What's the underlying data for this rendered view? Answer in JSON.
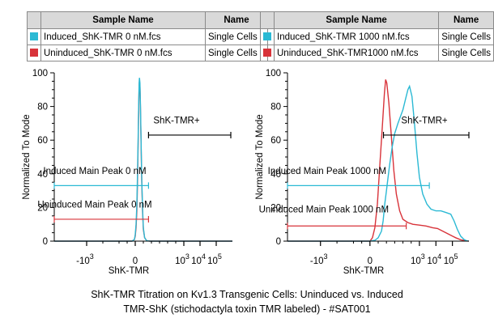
{
  "colors": {
    "induced": "#2bb9d4",
    "uninduced": "#d8333a",
    "axis": "#000000",
    "gate": "#000000"
  },
  "legends": [
    {
      "header_sample": "Sample Name",
      "header_name": "Name",
      "rows": [
        {
          "sample": "Induced_ShK-TMR 0 nM.fcs",
          "name": "Single Cells",
          "color_key": "induced"
        },
        {
          "sample": "Uninduced_ShK-TMR 0 nM.fcs",
          "name": "Single Cells",
          "color_key": "uninduced"
        }
      ]
    },
    {
      "header_sample": "Sample Name",
      "header_name": "Name",
      "rows": [
        {
          "sample": "Induced_ShK-TMR 1000 nM.fcs",
          "name": "Single Cells",
          "color_key": "induced"
        },
        {
          "sample": "Uninduced_ShK-TMR1000 nM.fcs",
          "name": "Single Cells",
          "color_key": "uninduced"
        }
      ]
    }
  ],
  "caption": {
    "line1": "ShK-TMR Titration on Kv1.3 Transgenic Cells:  Uninduced vs. Induced",
    "line2": "TMR-ShK (stichodactyla toxin TMR labeled) - #SAT001"
  },
  "chart_data": [
    {
      "type": "histogram",
      "xlabel": "ShK-TMR",
      "ylabel": "Normalized To Mode",
      "xlim": [
        -5,
        6
      ],
      "ylim": [
        0,
        100
      ],
      "y_ticks": [
        0,
        20,
        40,
        60,
        80,
        100
      ],
      "y_tick_labels": [
        "0",
        "20",
        "40",
        "60",
        "80",
        "100"
      ],
      "x_ticks": [
        {
          "x": -3,
          "label": "-10"
        },
        {
          "x": 0,
          "label": "0"
        },
        {
          "x": 3,
          "label": "10"
        },
        {
          "x": 4,
          "label": "10"
        },
        {
          "x": 5,
          "label": "10"
        }
      ],
      "x_tick_exp": [
        "3",
        "",
        "3",
        "4",
        "5"
      ],
      "gates": [
        {
          "label": "ShK-TMR+",
          "x1": 0.82,
          "x2": 5.9,
          "y": 63,
          "label_x": 2.55,
          "label_y": 70
        },
        {
          "label": "Induced Main Peak 0 nM",
          "x1": -5,
          "x2": 0.82,
          "y": 33,
          "label_x": -2.5,
          "label_y": 40,
          "color_key": "induced"
        },
        {
          "label": "Uninduced Main Peak 0 nM",
          "x1": -5,
          "x2": 0.82,
          "y": 13,
          "label_x": -2.5,
          "label_y": 20,
          "color_key": "uninduced"
        }
      ],
      "series": [
        {
          "name": "Induced_ShK-TMR 0 nM",
          "color_key": "induced",
          "points": [
            [
              -5,
              0
            ],
            [
              -0.2,
              0
            ],
            [
              -0.05,
              1
            ],
            [
              0.0,
              4
            ],
            [
              0.05,
              10
            ],
            [
              0.1,
              22
            ],
            [
              0.14,
              40
            ],
            [
              0.18,
              62
            ],
            [
              0.21,
              80
            ],
            [
              0.24,
              94
            ],
            [
              0.26,
              97
            ],
            [
              0.29,
              94
            ],
            [
              0.32,
              82
            ],
            [
              0.36,
              60
            ],
            [
              0.4,
              38
            ],
            [
              0.45,
              20
            ],
            [
              0.5,
              8
            ],
            [
              0.58,
              2
            ],
            [
              0.7,
              0.3
            ],
            [
              0.9,
              0
            ],
            [
              6,
              0
            ]
          ]
        },
        {
          "name": "Uninduced_ShK-TMR 0 nM",
          "color_key": "uninduced",
          "points": [
            [
              -5,
              0
            ],
            [
              -0.2,
              0
            ],
            [
              -0.05,
              1
            ],
            [
              0.0,
              3
            ],
            [
              0.05,
              8
            ],
            [
              0.1,
              18
            ],
            [
              0.14,
              35
            ],
            [
              0.18,
              58
            ],
            [
              0.21,
              78
            ],
            [
              0.24,
              92
            ],
            [
              0.26,
              95
            ],
            [
              0.29,
              92
            ],
            [
              0.32,
              80
            ],
            [
              0.36,
              58
            ],
            [
              0.4,
              36
            ],
            [
              0.45,
              18
            ],
            [
              0.5,
              7
            ],
            [
              0.58,
              2
            ],
            [
              0.7,
              0.3
            ],
            [
              0.9,
              0
            ],
            [
              6,
              0
            ]
          ]
        }
      ]
    },
    {
      "type": "histogram",
      "xlabel": "ShK-TMR",
      "ylabel": "Normalized To Mode",
      "xlim": [
        -5,
        6
      ],
      "ylim": [
        0,
        100
      ],
      "y_ticks": [
        0,
        20,
        40,
        60,
        80,
        100
      ],
      "y_tick_labels": [
        "0",
        "20",
        "40",
        "60",
        "80",
        "100"
      ],
      "x_ticks": [
        {
          "x": -3,
          "label": "-10"
        },
        {
          "x": 0,
          "label": "0"
        },
        {
          "x": 3,
          "label": "10"
        },
        {
          "x": 4,
          "label": "10"
        },
        {
          "x": 5,
          "label": "10"
        }
      ],
      "x_tick_exp": [
        "3",
        "",
        "3",
        "4",
        "5"
      ],
      "gates": [
        {
          "label": "ShK-TMR+",
          "x1": 0.82,
          "x2": 6,
          "y": 63,
          "label_x": 3.3,
          "label_y": 70
        },
        {
          "label": "Induced Main Peak 1000 nM",
          "x1": -5,
          "x2": 3.6,
          "y": 33,
          "label_x": -2.6,
          "label_y": 40,
          "color_key": "induced"
        },
        {
          "label": "Uninduced Main Peak 1000 nM",
          "x1": -5,
          "x2": 2.2,
          "y": 9,
          "label_x": -2.8,
          "label_y": 17,
          "color_key": "uninduced"
        }
      ],
      "series": [
        {
          "name": "Induced_ShK-TMR 1000 nM",
          "color_key": "induced",
          "points": [
            [
              -5,
              0
            ],
            [
              0.0,
              0
            ],
            [
              0.3,
              0.5
            ],
            [
              0.5,
              2
            ],
            [
              0.7,
              6
            ],
            [
              0.8,
              12
            ],
            [
              0.9,
              22
            ],
            [
              1.0,
              30
            ],
            [
              1.1,
              38
            ],
            [
              1.2,
              46
            ],
            [
              1.35,
              56
            ],
            [
              1.5,
              64
            ],
            [
              1.7,
              70
            ],
            [
              2.0,
              78
            ],
            [
              2.2,
              86
            ],
            [
              2.3,
              90
            ],
            [
              2.4,
              92
            ],
            [
              2.55,
              86
            ],
            [
              2.7,
              70
            ],
            [
              2.85,
              52
            ],
            [
              3.0,
              38
            ],
            [
              3.2,
              28
            ],
            [
              3.45,
              22
            ],
            [
              3.7,
              19
            ],
            [
              4.0,
              18
            ],
            [
              4.3,
              18
            ],
            [
              4.6,
              17
            ],
            [
              4.9,
              16
            ],
            [
              5.1,
              12
            ],
            [
              5.3,
              7
            ],
            [
              5.5,
              3
            ],
            [
              5.7,
              1
            ],
            [
              5.85,
              0.3
            ],
            [
              6,
              0
            ]
          ]
        },
        {
          "name": "Uninduced_ShK-TMR1000 nM",
          "color_key": "uninduced",
          "points": [
            [
              -5,
              0
            ],
            [
              0.0,
              0
            ],
            [
              0.15,
              2
            ],
            [
              0.3,
              8
            ],
            [
              0.45,
              22
            ],
            [
              0.6,
              45
            ],
            [
              0.75,
              68
            ],
            [
              0.88,
              88
            ],
            [
              0.95,
              96
            ],
            [
              1.02,
              94
            ],
            [
              1.15,
              82
            ],
            [
              1.3,
              62
            ],
            [
              1.45,
              42
            ],
            [
              1.6,
              28
            ],
            [
              1.8,
              18
            ],
            [
              2.0,
              13
            ],
            [
              2.3,
              11
            ],
            [
              2.6,
              10
            ],
            [
              3.0,
              9.5
            ],
            [
              3.4,
              9
            ],
            [
              3.8,
              8
            ],
            [
              4.1,
              7.5
            ],
            [
              4.4,
              6
            ],
            [
              4.7,
              4.5
            ],
            [
              5.0,
              3
            ],
            [
              5.2,
              2
            ],
            [
              5.5,
              0.8
            ],
            [
              5.8,
              0.3
            ],
            [
              6,
              0
            ]
          ]
        }
      ]
    }
  ]
}
